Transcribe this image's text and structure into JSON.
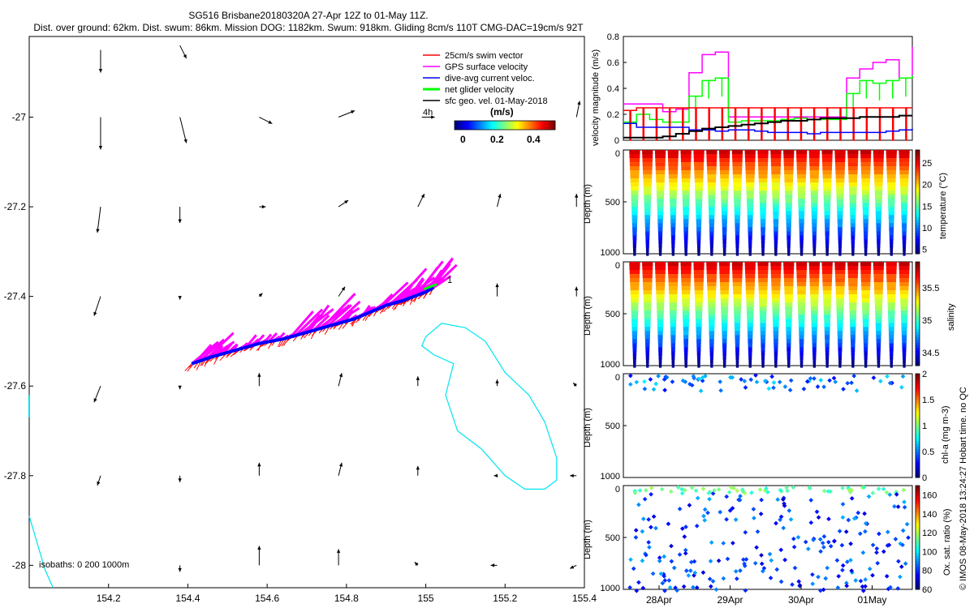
{
  "title": {
    "line1": "SG516 Brisbane20180320A 27-Apr 12Z to 01-May 11Z.",
    "line2": "Dist. over ground: 62km. Dist. swum: 86km. Mission DOG: 1182km. Swum: 918km. Gliding 8cm/s 110T CMG-DAC=19cm/s 92T"
  },
  "side_note": "© IMOS 08-May-2018 13:24:27 Hobart time. no QC",
  "colors": {
    "swim": "#ff0000",
    "gps": "#ff00ff",
    "dac": "#0000ff",
    "net": "#00ff00",
    "sfc": "#000000",
    "isobath": "#00e5ee"
  },
  "chart_data": [
    {
      "type": "scatter",
      "xlim": [
        154.0,
        155.4
      ],
      "ylim": [
        -28.05,
        -26.82
      ],
      "xticks": [
        "154.2",
        "154.4",
        "154.6",
        "154.8",
        "155",
        "155.2",
        "155.4"
      ],
      "yticks": [
        "-27",
        "-27.2",
        "-27.4",
        "-27.6",
        "-27.8",
        "-28"
      ],
      "legend": {
        "placement": "top-right",
        "entries": [
          "25cm/s swim vector",
          "GPS surface velocity",
          "dive-avg current veloc.",
          "net glider velocity",
          "sfc geo. vel. 01-May-2018"
        ]
      },
      "colorbar": {
        "label": "(m/s)",
        "ticks": [
          "0",
          "0.2",
          "0.4"
        ],
        "range": [
          0,
          0.5
        ]
      },
      "annotations": [
        "4h",
        "1"
      ],
      "isobath_note": "isobaths: 0   200  1000m",
      "track": {
        "lon": [
          154.41,
          154.46,
          154.52,
          154.58,
          154.64,
          154.7,
          154.76,
          154.82,
          154.86,
          154.9,
          154.94,
          154.97,
          155.0,
          155.02
        ],
        "lat": [
          -27.55,
          -27.535,
          -27.52,
          -27.505,
          -27.495,
          -27.48,
          -27.465,
          -27.45,
          -27.435,
          -27.42,
          -27.41,
          -27.4,
          -27.39,
          -27.38
        ]
      },
      "sfc_vectors": [
        {
          "lon": 154.18,
          "lat": -26.85,
          "u": 0.0,
          "v": -0.35
        },
        {
          "lon": 154.38,
          "lat": -26.84,
          "u": 0.1,
          "v": -0.2
        },
        {
          "lon": 154.18,
          "lat": -27.0,
          "u": 0.0,
          "v": -0.5
        },
        {
          "lon": 154.38,
          "lat": -27.0,
          "u": 0.1,
          "v": -0.4
        },
        {
          "lon": 154.58,
          "lat": -27.0,
          "u": 0.2,
          "v": -0.1
        },
        {
          "lon": 154.78,
          "lat": -27.0,
          "u": 0.25,
          "v": 0.1
        },
        {
          "lon": 154.99,
          "lat": -27.0,
          "u": 0.2,
          "v": 0.0
        },
        {
          "lon": 155.38,
          "lat": -27.0,
          "u": 0.05,
          "v": 0.25
        },
        {
          "lon": 154.18,
          "lat": -27.2,
          "u": -0.05,
          "v": -0.4
        },
        {
          "lon": 154.38,
          "lat": -27.2,
          "u": 0.0,
          "v": -0.25
        },
        {
          "lon": 154.58,
          "lat": -27.2,
          "u": 0.1,
          "v": 0.0
        },
        {
          "lon": 154.78,
          "lat": -27.2,
          "u": 0.15,
          "v": 0.1
        },
        {
          "lon": 154.98,
          "lat": -27.2,
          "u": 0.1,
          "v": 0.2
        },
        {
          "lon": 155.18,
          "lat": -27.2,
          "u": 0.05,
          "v": 0.2
        },
        {
          "lon": 155.38,
          "lat": -27.2,
          "u": 0.0,
          "v": 0.2
        },
        {
          "lon": 154.18,
          "lat": -27.4,
          "u": -0.1,
          "v": -0.3
        },
        {
          "lon": 154.38,
          "lat": -27.4,
          "u": 0.0,
          "v": -0.05
        },
        {
          "lon": 154.58,
          "lat": -27.4,
          "u": 0.05,
          "v": 0.05
        },
        {
          "lon": 154.78,
          "lat": -27.4,
          "u": 0.1,
          "v": 0.15
        },
        {
          "lon": 154.98,
          "lat": -27.4,
          "u": 0.05,
          "v": 0.15
        },
        {
          "lon": 155.18,
          "lat": -27.4,
          "u": 0.0,
          "v": 0.2
        },
        {
          "lon": 155.38,
          "lat": -27.4,
          "u": 0.0,
          "v": 0.15
        },
        {
          "lon": 154.18,
          "lat": -27.6,
          "u": -0.1,
          "v": -0.25
        },
        {
          "lon": 154.38,
          "lat": -27.6,
          "u": 0.0,
          "v": -0.05
        },
        {
          "lon": 154.58,
          "lat": -27.6,
          "u": 0.0,
          "v": 0.2
        },
        {
          "lon": 154.78,
          "lat": -27.6,
          "u": 0.05,
          "v": 0.2
        },
        {
          "lon": 154.98,
          "lat": -27.6,
          "u": 0.0,
          "v": 0.15
        },
        {
          "lon": 155.18,
          "lat": -27.6,
          "u": 0.0,
          "v": 0.1
        },
        {
          "lon": 155.38,
          "lat": -27.6,
          "u": -0.05,
          "v": 0.05
        },
        {
          "lon": 154.18,
          "lat": -27.8,
          "u": -0.05,
          "v": -0.15
        },
        {
          "lon": 154.38,
          "lat": -27.8,
          "u": 0.0,
          "v": -0.1
        },
        {
          "lon": 154.58,
          "lat": -27.8,
          "u": 0.0,
          "v": 0.2
        },
        {
          "lon": 154.78,
          "lat": -27.8,
          "u": 0.05,
          "v": 0.2
        },
        {
          "lon": 154.98,
          "lat": -27.8,
          "u": 0.0,
          "v": 0.15
        },
        {
          "lon": 155.18,
          "lat": -27.8,
          "u": -0.05,
          "v": 0.0
        },
        {
          "lon": 155.38,
          "lat": -27.8,
          "u": -0.1,
          "v": 0.0
        },
        {
          "lon": 154.38,
          "lat": -28.0,
          "u": 0.0,
          "v": -0.1
        },
        {
          "lon": 154.58,
          "lat": -28.0,
          "u": 0.0,
          "v": 0.3
        },
        {
          "lon": 154.78,
          "lat": -28.0,
          "u": 0.0,
          "v": 0.25
        },
        {
          "lon": 154.98,
          "lat": -28.0,
          "u": -0.05,
          "v": 0.05
        },
        {
          "lon": 155.18,
          "lat": -28.0,
          "u": -0.1,
          "v": 0.0
        },
        {
          "lon": 155.38,
          "lat": -28.0,
          "u": -0.1,
          "v": -0.05
        }
      ]
    },
    {
      "type": "line",
      "ylabel": "velocity magnitude (m/s)",
      "xlim": [
        0,
        22
      ],
      "ylim": [
        0,
        0.8
      ],
      "yticks": [
        "0",
        "0.2",
        "0.4",
        "0.6",
        "0.8"
      ],
      "series": [
        {
          "color": "#ff00ff",
          "values": [
            0.28,
            0.28,
            0.28,
            0.22,
            0.24,
            0.52,
            0.66,
            0.68,
            0.18,
            0.18,
            0.18,
            0.18,
            0.18,
            0.18,
            0.18,
            0.18,
            0.18,
            0.48,
            0.55,
            0.6,
            0.62,
            0.48,
            0.72
          ]
        },
        {
          "color": "#00ff00",
          "values": [
            0.14,
            0.2,
            0.16,
            0.14,
            0.14,
            0.34,
            0.46,
            0.48,
            0.14,
            0.15,
            0.15,
            0.15,
            0.16,
            0.17,
            0.16,
            0.16,
            0.16,
            0.36,
            0.46,
            0.44,
            0.46,
            0.48,
            0.5
          ]
        },
        {
          "color": "#ff0000",
          "values": [
            0.23,
            0.25,
            0.25,
            0.25,
            0.25,
            0.25,
            0.25,
            0.25,
            0.25,
            0.25,
            0.25,
            0.25,
            0.25,
            0.25,
            0.25,
            0.25,
            0.25,
            0.25,
            0.25,
            0.25,
            0.25,
            0.25,
            0.25
          ]
        },
        {
          "color": "#0000ff",
          "values": [
            0.13,
            0.1,
            0.1,
            0.1,
            0.1,
            0.08,
            0.08,
            0.07,
            0.08,
            0.08,
            0.07,
            0.06,
            0.06,
            0.06,
            0.05,
            0.06,
            0.06,
            0.06,
            0.06,
            0.06,
            0.07,
            0.08,
            0.09
          ]
        },
        {
          "color": "#000000",
          "values": [
            0.02,
            0.02,
            0.02,
            0.03,
            0.05,
            0.07,
            0.09,
            0.1,
            0.11,
            0.12,
            0.13,
            0.14,
            0.15,
            0.15,
            0.16,
            0.17,
            0.17,
            0.17,
            0.18,
            0.18,
            0.18,
            0.19,
            0.19
          ]
        }
      ]
    },
    {
      "type": "heatmap",
      "xlabel": "",
      "ylabel": "Depth (m)",
      "colorbar_label": "temperature (°C)",
      "yticks": [
        "0",
        "500",
        "1000"
      ],
      "ylim": [
        0,
        1000
      ],
      "colorbar_ticks": [
        "5",
        "10",
        "15",
        "20",
        "25"
      ],
      "crange": [
        4,
        28
      ],
      "surface_value": 25,
      "bottom_value": 5,
      "dives": 22
    },
    {
      "type": "heatmap",
      "ylabel": "Depth (m)",
      "colorbar_label": "salinity",
      "yticks": [
        "0",
        "500",
        "1000"
      ],
      "ylim": [
        0,
        1000
      ],
      "colorbar_ticks": [
        "34.5",
        "35",
        "35.5"
      ],
      "crange": [
        34.3,
        35.9
      ],
      "surface_value": 35.6,
      "bottom_value": 34.4,
      "dives": 22
    },
    {
      "type": "scatter",
      "ylabel": "Depth (m)",
      "colorbar_label": "chl-a (mg m-3)",
      "yticks": [
        "0",
        "500",
        "1000"
      ],
      "ylim": [
        0,
        1000
      ],
      "colorbar_ticks": [
        "0",
        "0.5",
        "1",
        "1.5",
        "2"
      ],
      "crange": [
        0,
        2
      ]
    },
    {
      "type": "scatter",
      "ylabel": "Depth (m)",
      "colorbar_label": "Ox. sat. ratio (%)",
      "yticks": [
        "0",
        "500",
        "1000"
      ],
      "ylim": [
        0,
        1000
      ],
      "colorbar_ticks": [
        "60",
        "80",
        "100",
        "120",
        "140",
        "160"
      ],
      "crange": [
        60,
        170
      ],
      "xticks": [
        "28Apr",
        "29Apr",
        "30Apr",
        "01May"
      ]
    }
  ]
}
